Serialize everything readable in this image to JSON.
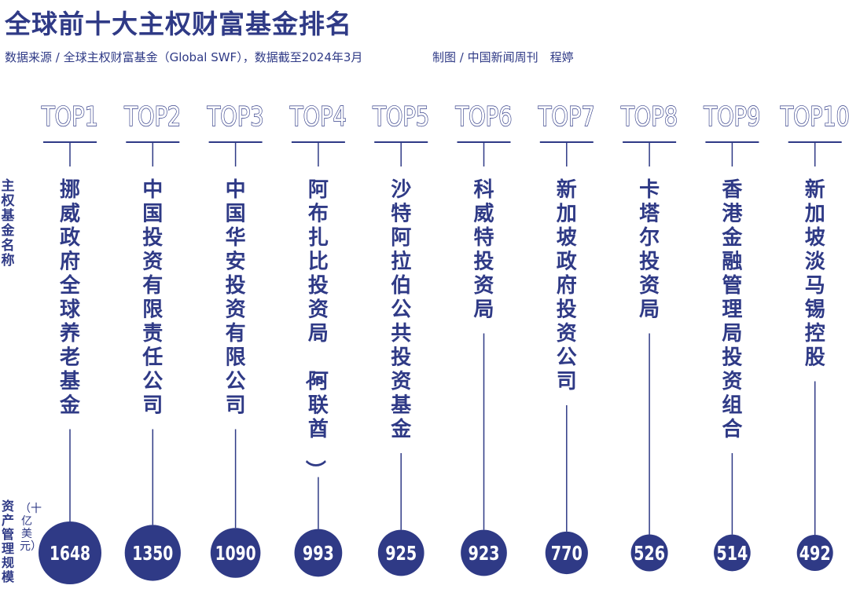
{
  "title": "全球前十大主权财富基金排名",
  "source": "数据来源 / 全球主权财富基金（Global SWF），数据截至2024年3月",
  "credit": "制图 / 中国新闻周刊　程婷",
  "row_labels": {
    "fund": "主权基金名称",
    "value": "资产管理规模",
    "unit": "（十亿美元）"
  },
  "colors": {
    "accent": "#2f3a86",
    "text_on_accent": "#ffffff"
  },
  "chart_data": {
    "type": "bar",
    "title": "全球前十大主权财富基金排名",
    "unit": "（十亿美元）",
    "ranks": [
      "TOP1",
      "TOP2",
      "TOP3",
      "TOP4",
      "TOP5",
      "TOP6",
      "TOP7",
      "TOP8",
      "TOP9",
      "TOP10"
    ],
    "categories": [
      "挪威政府全球养老基金",
      "中国投资有限责任公司",
      "中国华安投资有限公司",
      "阿布扎比投资局（阿联酋）",
      "沙特阿拉伯公共投资基金",
      "科威特投资局",
      "新加坡政府投资公司",
      "卡塔尔投资局",
      "香港金融管理局投资组合",
      "新加坡淡马锡控股"
    ],
    "values": [
      1648,
      1350,
      1090,
      993,
      925,
      923,
      770,
      526,
      514,
      492
    ]
  }
}
